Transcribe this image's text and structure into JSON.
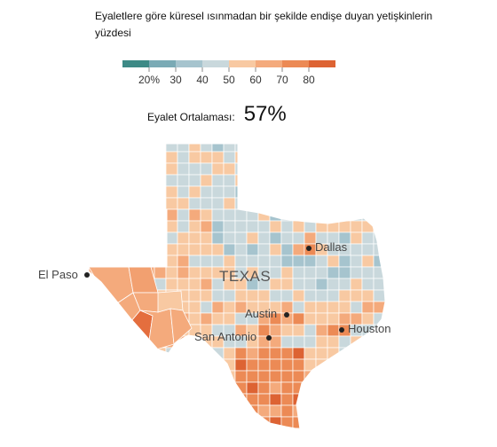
{
  "title": "Eyaletlere göre küresel ısınmadan bir şekilde endişe duyan yetişkinlerin yüzdesi",
  "legend": {
    "colors": [
      "#3d8a86",
      "#7aaab5",
      "#a6c4ce",
      "#c9d8dc",
      "#f8c9a2",
      "#f4aa7c",
      "#ec8a55",
      "#dd6333"
    ],
    "ticks": [
      "20%",
      "30",
      "40",
      "50",
      "60",
      "70",
      "80"
    ]
  },
  "average": {
    "label": "Eyalet Ortalaması:",
    "value": "57%"
  },
  "map": {
    "state_label": "TEXAS",
    "cities": [
      {
        "name": "El Paso"
      },
      {
        "name": "Dallas"
      },
      {
        "name": "Austin"
      },
      {
        "name": "San Antonio"
      },
      {
        "name": "Houston"
      }
    ]
  }
}
